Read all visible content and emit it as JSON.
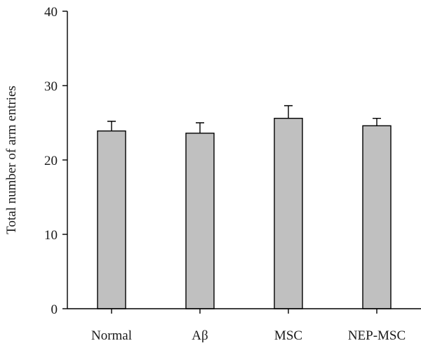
{
  "chart_data": {
    "type": "bar",
    "categories": [
      "Normal",
      "Aβ",
      "MSC",
      "NEP-MSC"
    ],
    "values": [
      23.9,
      23.6,
      25.6,
      24.6
    ],
    "errors": [
      1.3,
      1.4,
      1.7,
      1.0
    ],
    "title": "",
    "xlabel": "",
    "ylabel": "Total number of arm entries",
    "ylim": [
      0,
      40
    ],
    "yticks": [
      0,
      10,
      20,
      30,
      40
    ],
    "grid": false,
    "legend": "none",
    "colors": {
      "bar_fill": "#c0c0c0",
      "bar_stroke": "#000000",
      "axis": "#000000"
    }
  }
}
